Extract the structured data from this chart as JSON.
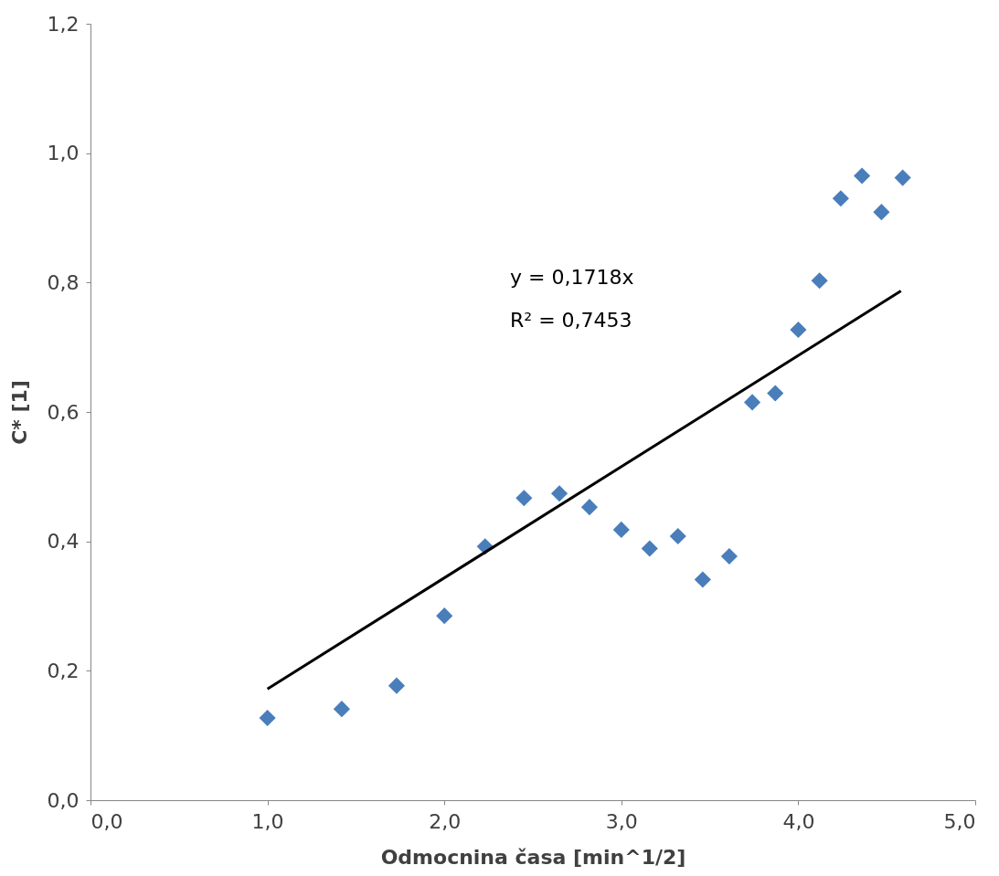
{
  "chart_data": {
    "type": "scatter",
    "xlabel": "Odmocnina časa [min^1/2]",
    "ylabel": "C* [1]",
    "xlim": [
      0,
      5
    ],
    "ylim": [
      0,
      1.2
    ],
    "xticks": [
      {
        "value": 0,
        "label": "0,0"
      },
      {
        "value": 1,
        "label": "1,0"
      },
      {
        "value": 2,
        "label": "2,0"
      },
      {
        "value": 3,
        "label": "3,0"
      },
      {
        "value": 4,
        "label": "4,0"
      },
      {
        "value": 5,
        "label": "5,0"
      }
    ],
    "yticks": [
      {
        "value": 0,
        "label": "0,0"
      },
      {
        "value": 0.2,
        "label": "0,2"
      },
      {
        "value": 0.4,
        "label": "0,4"
      },
      {
        "value": 0.6,
        "label": "0,6"
      },
      {
        "value": 0.8,
        "label": "0,8"
      },
      {
        "value": 1.0,
        "label": "1,0"
      },
      {
        "value": 1.2,
        "label": "1,2"
      }
    ],
    "series": [
      {
        "color": "#4a7ebb",
        "marker": "diamond",
        "x": [
          1.0,
          1.42,
          1.73,
          2.0,
          2.23,
          2.45,
          2.65,
          2.82,
          3.0,
          3.16,
          3.32,
          3.46,
          3.61,
          3.74,
          3.87,
          4.0,
          4.12,
          4.24,
          4.36,
          4.47,
          4.59
        ],
        "values": [
          0.127,
          0.141,
          0.177,
          0.285,
          0.392,
          0.467,
          0.474,
          0.453,
          0.418,
          0.389,
          0.408,
          0.341,
          0.377,
          0.615,
          0.629,
          0.727,
          0.803,
          0.93,
          0.965,
          0.909,
          0.962
        ]
      },
      {
        "type": "line",
        "color": "#000000",
        "x": [
          1.0,
          4.58
        ],
        "values": [
          0.1718,
          0.787
        ]
      }
    ],
    "annotations": [
      "y = 0,1718x",
      "R² = 0,7453"
    ]
  }
}
